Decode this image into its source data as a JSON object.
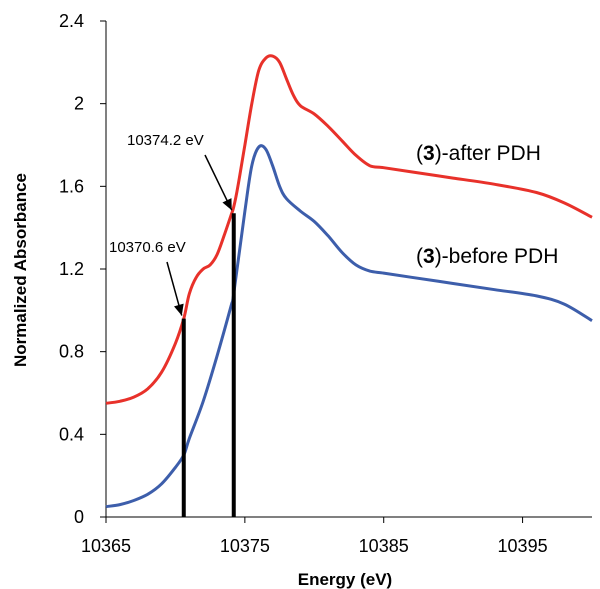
{
  "chart_data": {
    "type": "line",
    "xlabel": "Energy (eV)",
    "ylabel": "Normalized Absorbance",
    "xlim": [
      10365,
      10400
    ],
    "ylim": [
      0,
      2.4
    ],
    "x_ticks": [
      10365,
      10375,
      10385,
      10395
    ],
    "x_tick_labels": [
      "10365",
      "10375",
      "10385",
      "10395"
    ],
    "y_ticks": [
      0,
      0.4,
      0.8,
      1.2,
      1.6,
      2.0,
      2.4
    ],
    "y_tick_labels": [
      "0",
      "0.4",
      "0.8",
      "1.2",
      "1.6",
      "2",
      "2.4"
    ],
    "grid": false,
    "series": [
      {
        "label_prefix": "(",
        "label_bold": "3",
        "label_suffix": ")-after PDH",
        "color": "#e8312a",
        "x": [
          10365,
          10366,
          10367,
          10368,
          10369,
          10370,
          10370.6,
          10371,
          10371.5,
          10372,
          10372.5,
          10373,
          10373.5,
          10374,
          10374.2,
          10374.5,
          10375,
          10375.5,
          10376,
          10376.5,
          10377,
          10377.5,
          10378,
          10378.5,
          10379,
          10380,
          10381,
          10382,
          10383,
          10384,
          10385,
          10387,
          10390,
          10393,
          10396,
          10398,
          10400
        ],
        "y": [
          0.55,
          0.56,
          0.58,
          0.62,
          0.7,
          0.84,
          0.96,
          1.08,
          1.16,
          1.2,
          1.22,
          1.27,
          1.36,
          1.46,
          1.5,
          1.6,
          1.8,
          2.0,
          2.16,
          2.22,
          2.23,
          2.2,
          2.12,
          2.04,
          1.99,
          1.95,
          1.89,
          1.82,
          1.75,
          1.7,
          1.69,
          1.67,
          1.64,
          1.61,
          1.57,
          1.52,
          1.45
        ]
      },
      {
        "label_prefix": "(",
        "label_bold": "3",
        "label_suffix": ")-before PDH",
        "color": "#3d5eab",
        "x": [
          10365,
          10366,
          10367,
          10368,
          10369,
          10370,
          10370.6,
          10371,
          10372,
          10373,
          10374,
          10374.2,
          10375,
          10375.5,
          10376,
          10376.5,
          10377,
          10377.5,
          10378,
          10379,
          10380,
          10381,
          10382,
          10383,
          10384,
          10385,
          10387,
          10390,
          10393,
          10396,
          10398,
          10400
        ],
        "y": [
          0.05,
          0.06,
          0.08,
          0.11,
          0.16,
          0.24,
          0.3,
          0.38,
          0.56,
          0.78,
          1.02,
          1.08,
          1.48,
          1.7,
          1.79,
          1.78,
          1.7,
          1.6,
          1.54,
          1.48,
          1.43,
          1.36,
          1.28,
          1.22,
          1.19,
          1.18,
          1.16,
          1.13,
          1.1,
          1.07,
          1.03,
          0.95
        ]
      }
    ],
    "annotations": [
      {
        "text": "10370.6 eV",
        "x": 10370.6,
        "bar_top": 0.96
      },
      {
        "text": "10374.2 eV",
        "x": 10374.2,
        "bar_top": 1.47
      }
    ]
  }
}
